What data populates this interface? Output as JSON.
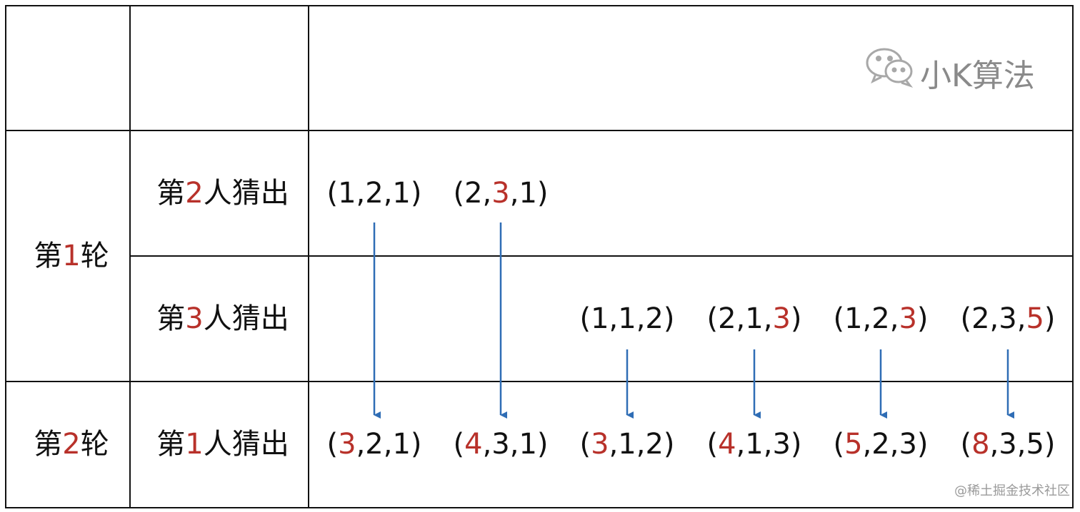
{
  "watermark": "小K算法",
  "footer": "@稀土掘金技术社区",
  "highlight_color": "#b8312a",
  "rounds": [
    {
      "label": {
        "parts": [
          "第",
          "1",
          "轮"
        ],
        "highlight": 1
      },
      "rows": [
        {
          "label": {
            "parts": [
              "第",
              "2",
              "人猜出"
            ],
            "highlight": 1
          },
          "cells": [
            {
              "parts": [
                "(1,2,1)"
              ]
            },
            {
              "parts": [
                "(2,",
                "3",
                ",1)"
              ],
              "highlight": 1
            },
            null,
            null,
            null,
            null
          ]
        },
        {
          "label": {
            "parts": [
              "第",
              "3",
              "人猜出"
            ],
            "highlight": 1
          },
          "cells": [
            null,
            null,
            {
              "parts": [
                "(1,1,2)"
              ]
            },
            {
              "parts": [
                "(2,1,",
                "3",
                ")"
              ],
              "highlight": 1
            },
            {
              "parts": [
                "(1,2,",
                "3",
                ")"
              ],
              "highlight": 1
            },
            {
              "parts": [
                "(2,3,",
                "5",
                ")"
              ],
              "highlight": 1
            }
          ]
        }
      ]
    },
    {
      "label": {
        "parts": [
          "第",
          "2",
          "轮"
        ],
        "highlight": 1
      },
      "rows": [
        {
          "label": {
            "parts": [
              "第",
              "1",
              "人猜出"
            ],
            "highlight": 1
          },
          "cells": [
            {
              "parts": [
                "(",
                "3",
                ",2,1)"
              ],
              "highlight": 1
            },
            {
              "parts": [
                "(",
                "4",
                ",3,1)"
              ],
              "highlight": 1
            },
            {
              "parts": [
                "(",
                "3",
                ",1,2)"
              ],
              "highlight": 1
            },
            {
              "parts": [
                "(",
                "4",
                ",1,3)"
              ],
              "highlight": 1
            },
            {
              "parts": [
                "(",
                "5",
                ",2,3)"
              ],
              "highlight": 1
            },
            {
              "parts": [
                "(",
                "8",
                ",3,5)"
              ],
              "highlight": 1
            }
          ]
        }
      ]
    }
  ]
}
